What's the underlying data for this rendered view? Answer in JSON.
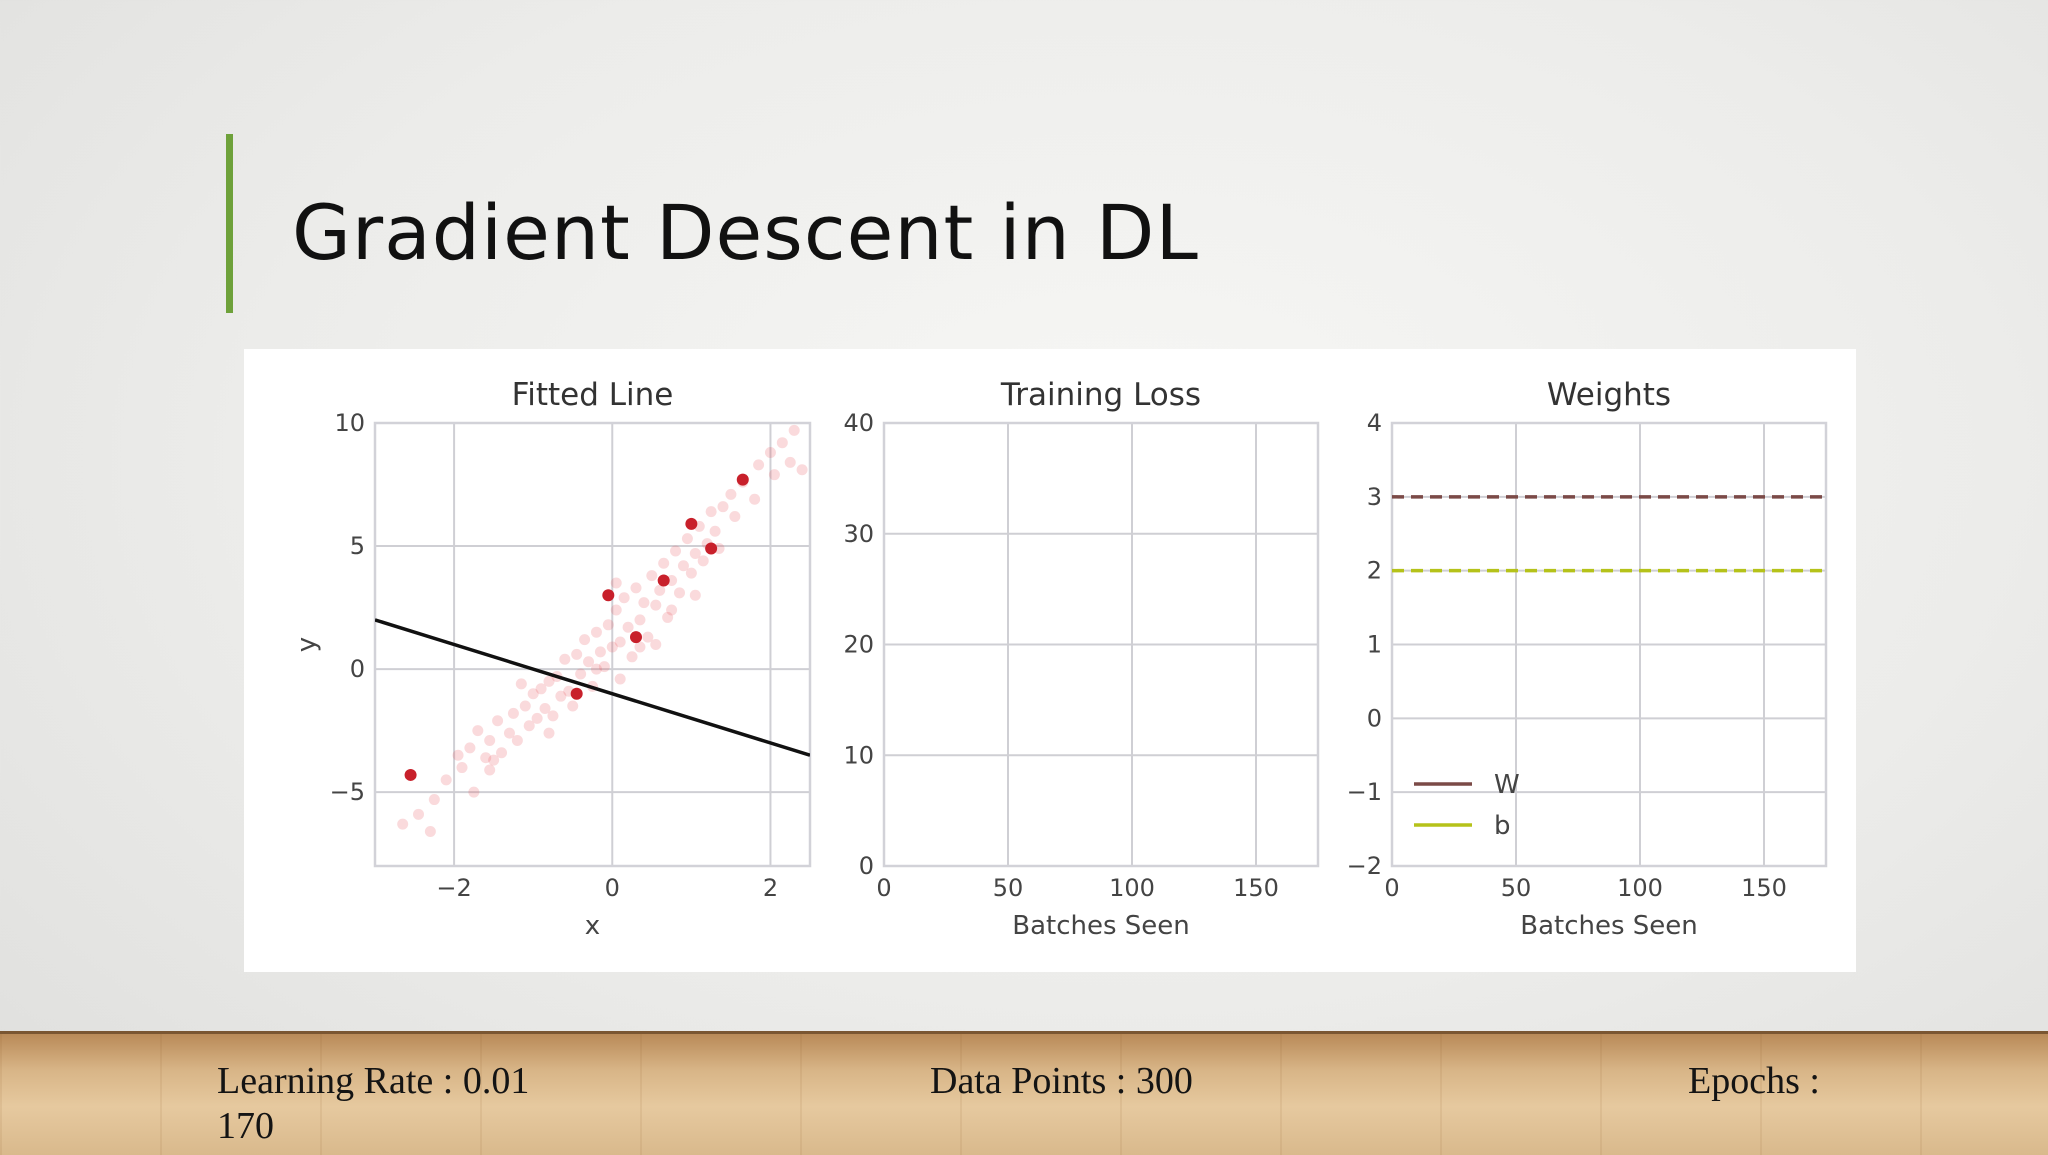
{
  "slide": {
    "title": "Gradient Descent in DL",
    "accent_color": "#6ea13a"
  },
  "footer": {
    "learning_rate_text": "Learning Rate : 0.01",
    "epochs_value": "170",
    "data_points_text": "Data Points : 300",
    "epochs_label": "Epochs :"
  },
  "chart_data": [
    {
      "type": "scatter",
      "title": "Fitted Line",
      "xlabel": "x",
      "ylabel": "y",
      "xlim": [
        -3.0,
        2.5
      ],
      "ylim": [
        -8.0,
        10.0
      ],
      "xticks": [
        -2,
        0,
        2
      ],
      "yticks": [
        -5,
        0,
        5,
        10
      ],
      "xtick_labels": [
        "−2",
        "0",
        "2"
      ],
      "ytick_labels": [
        "−5",
        "0",
        "5",
        "10"
      ],
      "grid": true,
      "series": [
        {
          "kind": "scatter-faded",
          "color": "#e8585f",
          "points": [
            [
              -2.65,
              -6.3
            ],
            [
              -2.45,
              -5.9
            ],
            [
              -2.3,
              -6.6
            ],
            [
              -2.25,
              -5.3
            ],
            [
              -2.1,
              -4.5
            ],
            [
              -1.95,
              -3.5
            ],
            [
              -1.9,
              -4.0
            ],
            [
              -1.8,
              -3.2
            ],
            [
              -1.75,
              -5.0
            ],
            [
              -1.7,
              -2.5
            ],
            [
              -1.6,
              -3.6
            ],
            [
              -1.55,
              -2.9
            ],
            [
              -1.5,
              -3.7
            ],
            [
              -1.45,
              -2.1
            ],
            [
              -1.4,
              -3.4
            ],
            [
              -1.3,
              -2.6
            ],
            [
              -1.25,
              -1.8
            ],
            [
              -1.2,
              -2.9
            ],
            [
              -1.1,
              -1.5
            ],
            [
              -1.05,
              -2.3
            ],
            [
              -1.0,
              -1.0
            ],
            [
              -0.95,
              -2.0
            ],
            [
              -0.9,
              -0.8
            ],
            [
              -0.85,
              -1.6
            ],
            [
              -0.8,
              -0.5
            ],
            [
              -0.75,
              -1.9
            ],
            [
              -0.7,
              -0.3
            ],
            [
              -0.65,
              -1.1
            ],
            [
              -0.6,
              0.4
            ],
            [
              -0.55,
              -0.9
            ],
            [
              -0.5,
              -1.5
            ],
            [
              -0.45,
              0.6
            ],
            [
              -0.4,
              -0.2
            ],
            [
              -0.35,
              1.2
            ],
            [
              -0.3,
              0.3
            ],
            [
              -0.25,
              -0.7
            ],
            [
              -0.2,
              1.5
            ],
            [
              -0.15,
              0.7
            ],
            [
              -0.1,
              0.1
            ],
            [
              -0.05,
              1.8
            ],
            [
              0.0,
              0.9
            ],
            [
              0.05,
              2.4
            ],
            [
              0.1,
              1.1
            ],
            [
              0.15,
              2.9
            ],
            [
              0.2,
              1.7
            ],
            [
              0.25,
              0.5
            ],
            [
              0.3,
              3.3
            ],
            [
              0.35,
              2.0
            ],
            [
              0.4,
              2.7
            ],
            [
              0.45,
              1.3
            ],
            [
              0.5,
              3.8
            ],
            [
              0.55,
              2.6
            ],
            [
              0.6,
              3.2
            ],
            [
              0.65,
              4.3
            ],
            [
              0.7,
              2.1
            ],
            [
              0.75,
              3.6
            ],
            [
              0.8,
              4.8
            ],
            [
              0.85,
              3.1
            ],
            [
              0.9,
              4.2
            ],
            [
              0.95,
              5.3
            ],
            [
              1.0,
              3.9
            ],
            [
              1.05,
              4.7
            ],
            [
              1.1,
              5.8
            ],
            [
              1.15,
              4.4
            ],
            [
              1.2,
              5.1
            ],
            [
              1.25,
              6.4
            ],
            [
              1.3,
              5.6
            ],
            [
              1.35,
              4.9
            ],
            [
              1.4,
              6.6
            ],
            [
              1.5,
              7.1
            ],
            [
              1.55,
              6.2
            ],
            [
              1.65,
              7.6
            ],
            [
              1.8,
              6.9
            ],
            [
              1.85,
              8.3
            ],
            [
              2.0,
              8.8
            ],
            [
              2.05,
              7.9
            ],
            [
              2.15,
              9.2
            ],
            [
              2.25,
              8.4
            ],
            [
              2.3,
              9.7
            ],
            [
              2.4,
              8.1
            ],
            [
              -0.2,
              0.0
            ],
            [
              0.1,
              -0.4
            ],
            [
              -1.15,
              -0.6
            ],
            [
              0.55,
              1.0
            ],
            [
              0.75,
              2.4
            ],
            [
              -0.8,
              -2.6
            ],
            [
              0.05,
              3.5
            ],
            [
              1.05,
              3.0
            ],
            [
              -1.55,
              -4.1
            ],
            [
              0.35,
              0.9
            ]
          ]
        },
        {
          "kind": "scatter-highlight",
          "color": "#c8202b",
          "points": [
            [
              -2.55,
              -4.3
            ],
            [
              -0.45,
              -1.0
            ],
            [
              -0.05,
              3.0
            ],
            [
              0.3,
              1.3
            ],
            [
              0.65,
              3.6
            ],
            [
              1.0,
              5.9
            ],
            [
              1.25,
              4.9
            ],
            [
              1.65,
              7.7
            ]
          ]
        },
        {
          "kind": "line",
          "name": "",
          "color": "#111111",
          "x": [
            -3.0,
            2.5
          ],
          "y": [
            2.0,
            -3.5
          ]
        }
      ]
    },
    {
      "type": "line",
      "title": "Training Loss",
      "xlabel": "Batches Seen",
      "ylabel": "",
      "xlim": [
        0,
        175
      ],
      "ylim": [
        0,
        40
      ],
      "xticks": [
        0,
        50,
        100,
        150
      ],
      "yticks": [
        0,
        10,
        20,
        30,
        40
      ],
      "xtick_labels": [
        "0",
        "50",
        "100",
        "150"
      ],
      "ytick_labels": [
        "0",
        "10",
        "20",
        "30",
        "40"
      ],
      "grid": true,
      "series": []
    },
    {
      "type": "line",
      "title": "Weights",
      "xlabel": "Batches Seen",
      "ylabel": "",
      "xlim": [
        0,
        175
      ],
      "ylim": [
        -2,
        4
      ],
      "xticks": [
        0,
        50,
        100,
        150
      ],
      "yticks": [
        -2,
        -1,
        0,
        1,
        2,
        3,
        4
      ],
      "xtick_labels": [
        "0",
        "50",
        "100",
        "150"
      ],
      "ytick_labels": [
        "−2",
        "−1",
        "0",
        "1",
        "2",
        "3",
        "4"
      ],
      "grid": true,
      "legend": {
        "placement": "lower-left",
        "entries": [
          "W",
          "b"
        ]
      },
      "series": [
        {
          "kind": "hline-dashed",
          "name": "",
          "color": "#7b4a47",
          "x": [
            0,
            175
          ],
          "y": [
            3,
            3
          ]
        },
        {
          "kind": "hline-dashed",
          "name": "",
          "color": "#b5c21a",
          "x": [
            0,
            175
          ],
          "y": [
            2,
            2
          ]
        },
        {
          "kind": "legend-line",
          "name": "W",
          "color": "#7b4a47"
        },
        {
          "kind": "legend-line",
          "name": "b",
          "color": "#b5c21a"
        }
      ]
    }
  ]
}
